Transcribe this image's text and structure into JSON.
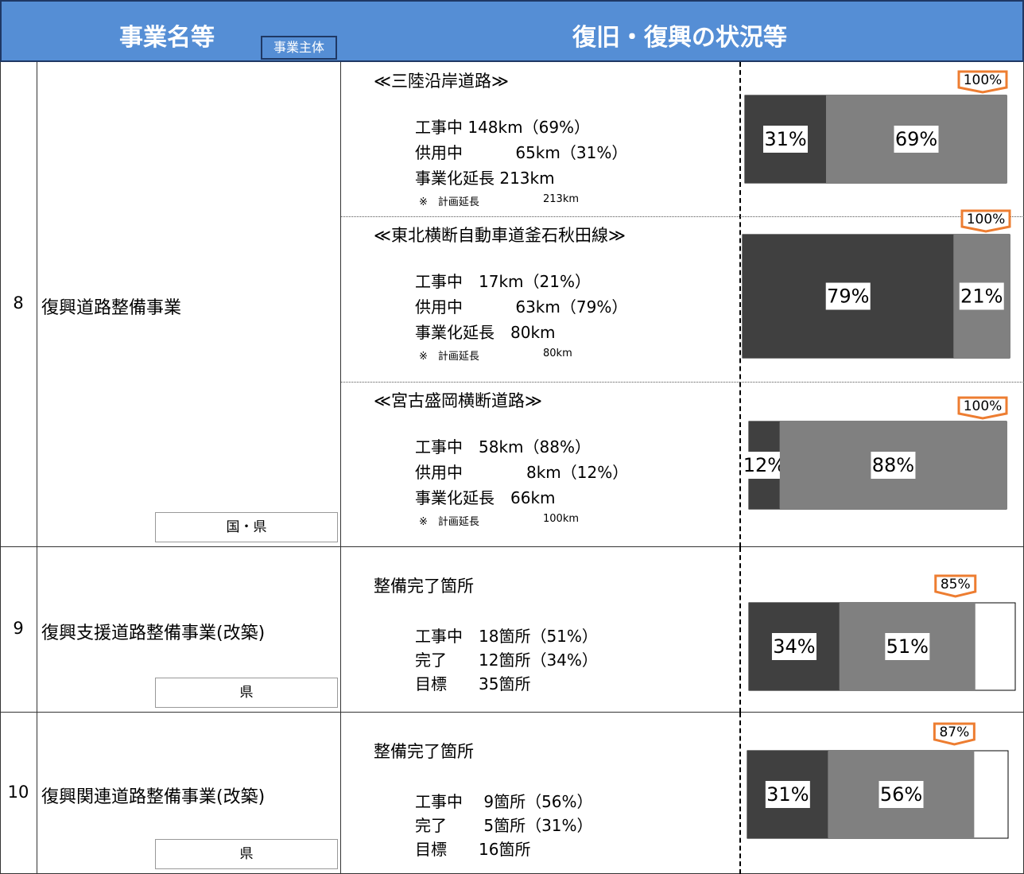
{
  "header": {
    "name": "事業名等",
    "entity_badge": "事業主体",
    "status": "復旧・復興の状況等"
  },
  "rows": [
    {
      "number": "8",
      "name": "復興道路整備事業",
      "entity": "国・県",
      "sections": [
        {
          "title": "≪三陸沿岸道路≫",
          "lines": [
            "工事中 148km（69%）",
            "供用中　　　 65km（31%）",
            "事業化延長 213km"
          ],
          "note": "※　計画延長",
          "note_value": "213km",
          "values": [
            31,
            69
          ],
          "value_labels": [
            "31%",
            "69%"
          ],
          "total": 100,
          "total_label": "100%"
        },
        {
          "title": "≪東北横断自動車道釜石秋田線≫",
          "lines": [
            "工事中　17km（21%）",
            "供用中　　　 63km（79%）",
            "事業化延長　80km"
          ],
          "note": "※　計画延長",
          "note_value": "80km",
          "values": [
            79,
            21
          ],
          "value_labels": [
            "79%",
            "21%"
          ],
          "total": 100,
          "total_label": "100%"
        },
        {
          "title": "≪宮古盛岡横断道路≫",
          "lines": [
            "工事中　58km（88%）",
            "供用中　　　　8km（12%）",
            "事業化延長　66km"
          ],
          "note": "※　計画延長",
          "note_value": "100km",
          "values": [
            12,
            88
          ],
          "value_labels": [
            "12%",
            "88%"
          ],
          "total": 100,
          "total_label": "100%"
        }
      ]
    },
    {
      "number": "9",
      "name": "復興支援道路整備事業(改築)",
      "entity": "県",
      "sections": [
        {
          "title": "整備完了箇所",
          "lines": [
            "工事中　18箇所（51%）",
            "完了　　12箇所（34%）",
            "目標　　35箇所"
          ],
          "values": [
            34,
            51
          ],
          "value_labels": [
            "34%",
            "51%"
          ],
          "total": 85,
          "total_label": "85%"
        }
      ]
    },
    {
      "number": "10",
      "name": "復興関連道路整備事業(改築)",
      "entity": "県",
      "sections": [
        {
          "title": "整備完了箇所",
          "lines": [
            "工事中　 9箇所（56%）",
            "完了　　 5箇所（31%）",
            "目標　　16箇所"
          ],
          "values": [
            31,
            56
          ],
          "value_labels": [
            "31%",
            "56%"
          ],
          "total": 87,
          "total_label": "87%"
        }
      ]
    }
  ]
}
